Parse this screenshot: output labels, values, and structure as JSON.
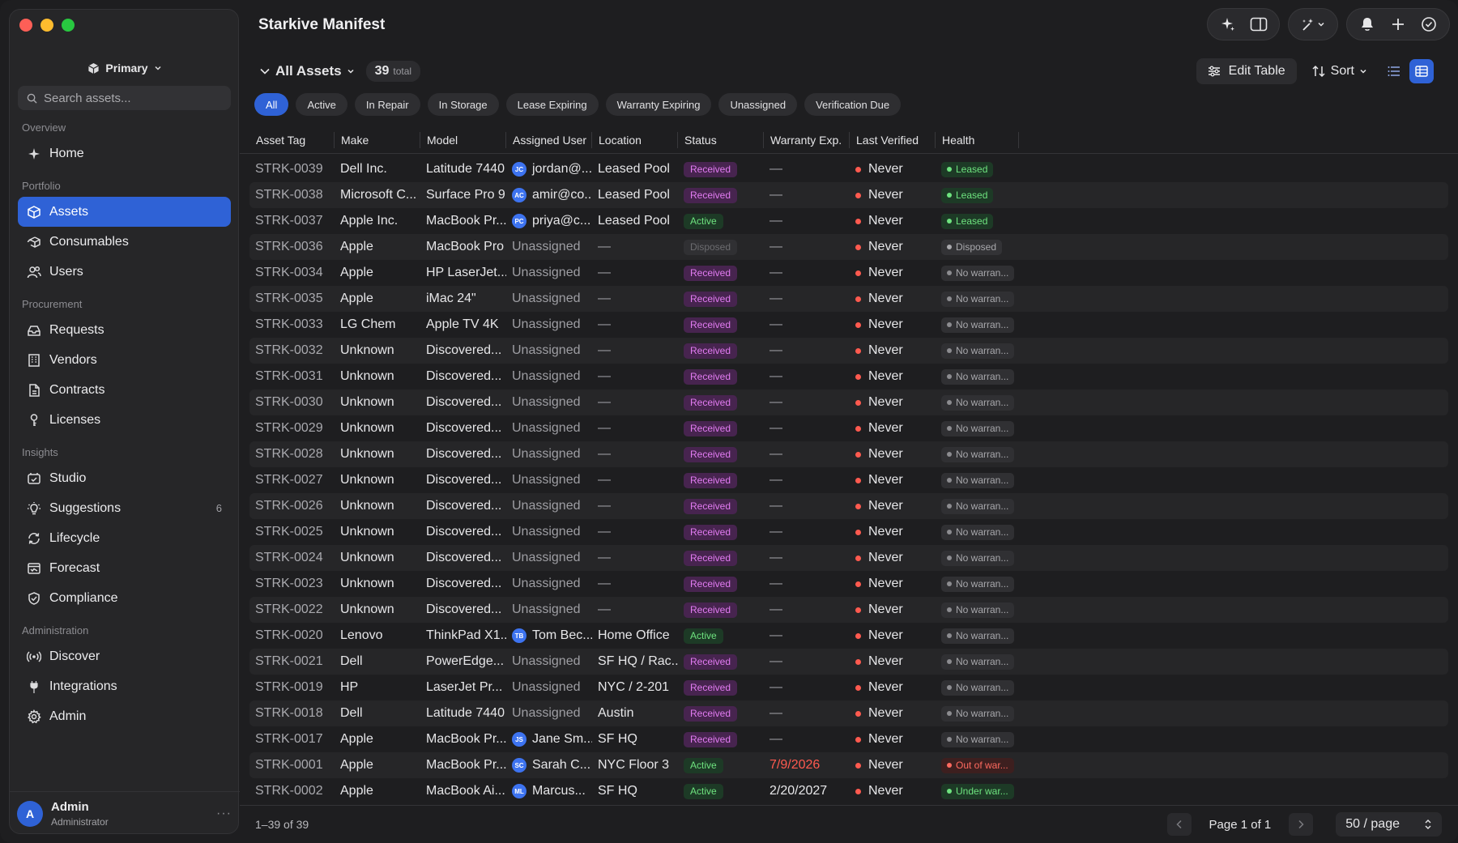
{
  "app": {
    "title": "Starkive Manifest"
  },
  "sidebar": {
    "workspace": "Primary",
    "search_placeholder": "Search assets...",
    "sections": [
      {
        "label": "Overview",
        "items": [
          {
            "label": "Home",
            "icon": "sparkle-icon"
          }
        ]
      },
      {
        "label": "Portfolio",
        "items": [
          {
            "label": "Assets",
            "icon": "cube-icon",
            "active": true
          },
          {
            "label": "Consumables",
            "icon": "box-refresh-icon"
          },
          {
            "label": "Users",
            "icon": "users-icon"
          }
        ]
      },
      {
        "label": "Procurement",
        "items": [
          {
            "label": "Requests",
            "icon": "inbox-icon"
          },
          {
            "label": "Vendors",
            "icon": "building-icon"
          },
          {
            "label": "Contracts",
            "icon": "document-icon"
          },
          {
            "label": "Licenses",
            "icon": "key-icon"
          }
        ]
      },
      {
        "label": "Insights",
        "items": [
          {
            "label": "Studio",
            "icon": "studio-icon"
          },
          {
            "label": "Suggestions",
            "icon": "lightbulb-icon",
            "count": "6"
          },
          {
            "label": "Lifecycle",
            "icon": "cycle-icon"
          },
          {
            "label": "Forecast",
            "icon": "forecast-icon"
          },
          {
            "label": "Compliance",
            "icon": "shield-check-icon"
          }
        ]
      },
      {
        "label": "Administration",
        "items": [
          {
            "label": "Discover",
            "icon": "broadcast-icon"
          },
          {
            "label": "Integrations",
            "icon": "plug-icon"
          },
          {
            "label": "Admin",
            "icon": "gear-icon"
          }
        ]
      }
    ],
    "user": {
      "initial": "A",
      "name": "Admin",
      "role": "Administrator",
      "more": "···"
    }
  },
  "toolbar": {
    "view_title": "All Assets",
    "total_count": "39",
    "total_label": "total",
    "edit_table": "Edit Table",
    "sort": "Sort"
  },
  "filters": [
    "All",
    "Active",
    "In Repair",
    "In Storage",
    "Lease Expiring",
    "Warranty Expiring",
    "Unassigned",
    "Verification Due"
  ],
  "table": {
    "columns": [
      "Asset Tag",
      "Make",
      "Model",
      "Assigned User",
      "Location",
      "Status",
      "Warranty Exp.",
      "Last Verified",
      "Health"
    ],
    "rows": [
      {
        "tag": "STRK-0039",
        "make": "Dell Inc.",
        "model": "Latitude 7440",
        "user": "jordan@...",
        "initials": "JC",
        "location": "Leased Pool",
        "status": "Received",
        "warranty": "—",
        "verified": "Never",
        "health": "Leased",
        "hclass": "leased"
      },
      {
        "tag": "STRK-0038",
        "make": "Microsoft C...",
        "model": "Surface Pro 9",
        "user": "amir@co...",
        "initials": "AC",
        "location": "Leased Pool",
        "status": "Received",
        "warranty": "—",
        "verified": "Never",
        "health": "Leased",
        "hclass": "leased"
      },
      {
        "tag": "STRK-0037",
        "make": "Apple Inc.",
        "model": "MacBook Pr...",
        "user": "priya@c...",
        "initials": "PC",
        "location": "Leased Pool",
        "status": "Active",
        "warranty": "—",
        "verified": "Never",
        "health": "Leased",
        "hclass": "leased"
      },
      {
        "tag": "STRK-0036",
        "make": "Apple",
        "model": "MacBook Pro",
        "user": "Unassigned",
        "initials": "",
        "location": "—",
        "status": "Disposed",
        "warranty": "—",
        "verified": "Never",
        "health": "Disposed",
        "hclass": "disposed"
      },
      {
        "tag": "STRK-0034",
        "make": "Apple",
        "model": "HP LaserJet...",
        "user": "Unassigned",
        "initials": "",
        "location": "—",
        "status": "Received",
        "warranty": "—",
        "verified": "Never",
        "health": "No warran...",
        "hclass": "none"
      },
      {
        "tag": "STRK-0035",
        "make": "Apple",
        "model": "iMac 24\"",
        "user": "Unassigned",
        "initials": "",
        "location": "—",
        "status": "Received",
        "warranty": "—",
        "verified": "Never",
        "health": "No warran...",
        "hclass": "none"
      },
      {
        "tag": "STRK-0033",
        "make": "LG Chem",
        "model": "Apple TV 4K",
        "user": "Unassigned",
        "initials": "",
        "location": "—",
        "status": "Received",
        "warranty": "—",
        "verified": "Never",
        "health": "No warran...",
        "hclass": "none"
      },
      {
        "tag": "STRK-0032",
        "make": "Unknown",
        "model": "Discovered...",
        "user": "Unassigned",
        "initials": "",
        "location": "—",
        "status": "Received",
        "warranty": "—",
        "verified": "Never",
        "health": "No warran...",
        "hclass": "none"
      },
      {
        "tag": "STRK-0031",
        "make": "Unknown",
        "model": "Discovered...",
        "user": "Unassigned",
        "initials": "",
        "location": "—",
        "status": "Received",
        "warranty": "—",
        "verified": "Never",
        "health": "No warran...",
        "hclass": "none"
      },
      {
        "tag": "STRK-0030",
        "make": "Unknown",
        "model": "Discovered...",
        "user": "Unassigned",
        "initials": "",
        "location": "—",
        "status": "Received",
        "warranty": "—",
        "verified": "Never",
        "health": "No warran...",
        "hclass": "none"
      },
      {
        "tag": "STRK-0029",
        "make": "Unknown",
        "model": "Discovered...",
        "user": "Unassigned",
        "initials": "",
        "location": "—",
        "status": "Received",
        "warranty": "—",
        "verified": "Never",
        "health": "No warran...",
        "hclass": "none"
      },
      {
        "tag": "STRK-0028",
        "make": "Unknown",
        "model": "Discovered...",
        "user": "Unassigned",
        "initials": "",
        "location": "—",
        "status": "Received",
        "warranty": "—",
        "verified": "Never",
        "health": "No warran...",
        "hclass": "none"
      },
      {
        "tag": "STRK-0027",
        "make": "Unknown",
        "model": "Discovered...",
        "user": "Unassigned",
        "initials": "",
        "location": "—",
        "status": "Received",
        "warranty": "—",
        "verified": "Never",
        "health": "No warran...",
        "hclass": "none"
      },
      {
        "tag": "STRK-0026",
        "make": "Unknown",
        "model": "Discovered...",
        "user": "Unassigned",
        "initials": "",
        "location": "—",
        "status": "Received",
        "warranty": "—",
        "verified": "Never",
        "health": "No warran...",
        "hclass": "none"
      },
      {
        "tag": "STRK-0025",
        "make": "Unknown",
        "model": "Discovered...",
        "user": "Unassigned",
        "initials": "",
        "location": "—",
        "status": "Received",
        "warranty": "—",
        "verified": "Never",
        "health": "No warran...",
        "hclass": "none"
      },
      {
        "tag": "STRK-0024",
        "make": "Unknown",
        "model": "Discovered...",
        "user": "Unassigned",
        "initials": "",
        "location": "—",
        "status": "Received",
        "warranty": "—",
        "verified": "Never",
        "health": "No warran...",
        "hclass": "none"
      },
      {
        "tag": "STRK-0023",
        "make": "Unknown",
        "model": "Discovered...",
        "user": "Unassigned",
        "initials": "",
        "location": "—",
        "status": "Received",
        "warranty": "—",
        "verified": "Never",
        "health": "No warran...",
        "hclass": "none"
      },
      {
        "tag": "STRK-0022",
        "make": "Unknown",
        "model": "Discovered...",
        "user": "Unassigned",
        "initials": "",
        "location": "—",
        "status": "Received",
        "warranty": "—",
        "verified": "Never",
        "health": "No warran...",
        "hclass": "none"
      },
      {
        "tag": "STRK-0020",
        "make": "Lenovo",
        "model": "ThinkPad X1...",
        "user": "Tom Bec...",
        "initials": "TB",
        "location": "Home Office",
        "status": "Active",
        "warranty": "—",
        "verified": "Never",
        "health": "No warran...",
        "hclass": "none"
      },
      {
        "tag": "STRK-0021",
        "make": "Dell",
        "model": "PowerEdge...",
        "user": "Unassigned",
        "initials": "",
        "location": "SF HQ / Rac...",
        "status": "Received",
        "warranty": "—",
        "verified": "Never",
        "health": "No warran...",
        "hclass": "none"
      },
      {
        "tag": "STRK-0019",
        "make": "HP",
        "model": "LaserJet Pr...",
        "user": "Unassigned",
        "initials": "",
        "location": "NYC / 2-201",
        "status": "Received",
        "warranty": "—",
        "verified": "Never",
        "health": "No warran...",
        "hclass": "none"
      },
      {
        "tag": "STRK-0018",
        "make": "Dell",
        "model": "Latitude 7440",
        "user": "Unassigned",
        "initials": "",
        "location": "Austin",
        "status": "Received",
        "warranty": "—",
        "verified": "Never",
        "health": "No warran...",
        "hclass": "none"
      },
      {
        "tag": "STRK-0017",
        "make": "Apple",
        "model": "MacBook Pr...",
        "user": "Jane Sm...",
        "initials": "JS",
        "location": "SF HQ",
        "status": "Received",
        "warranty": "—",
        "verified": "Never",
        "health": "No warran...",
        "hclass": "none"
      },
      {
        "tag": "STRK-0001",
        "make": "Apple",
        "model": "MacBook Pr...",
        "user": "Sarah C...",
        "initials": "SC",
        "location": "NYC Floor 3",
        "status": "Active",
        "warranty": "7/9/2026",
        "warranty_overdue": true,
        "verified": "Never",
        "health": "Out of war...",
        "hclass": "out"
      },
      {
        "tag": "STRK-0002",
        "make": "Apple",
        "model": "MacBook Ai...",
        "user": "Marcus...",
        "initials": "ML",
        "location": "SF HQ",
        "status": "Active",
        "warranty": "2/20/2027",
        "verified": "Never",
        "health": "Under war...",
        "hclass": "under"
      }
    ]
  },
  "footer": {
    "range": "1–39 of 39",
    "page_label": "Page 1 of 1",
    "per_page": "50 / page"
  },
  "colors": {
    "accent": "#2f62d6",
    "received": "#e27cf2",
    "active": "#6ee37f",
    "danger": "#ff5a4f"
  }
}
